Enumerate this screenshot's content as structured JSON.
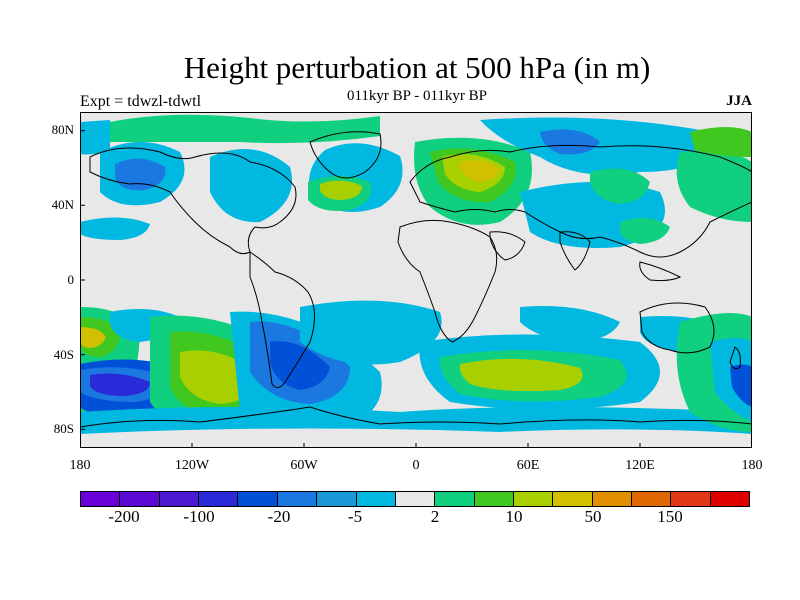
{
  "title": "Height perturbation at 500 hPa (in m)",
  "subtitle": "011kyr BP - 011kyr BP",
  "left_label": "Expt = tdwzl-tdwtl",
  "right_label": "JJA",
  "lat_labels": [
    "80N",
    "40N",
    "0",
    "40S",
    "80S"
  ],
  "lon_labels": [
    "180",
    "120W",
    "60W",
    "0",
    "60E",
    "120E",
    "180"
  ],
  "colorbar": {
    "colors": [
      "#6a00d8",
      "#5a0ad2",
      "#4a1ad0",
      "#2a2ad8",
      "#0050d8",
      "#1a78e0",
      "#1a98d8",
      "#00b8e0",
      "#e8e8e8",
      "#10d080",
      "#40c820",
      "#a8d000",
      "#d0c000",
      "#e09000",
      "#e06800",
      "#e03818",
      "#e00000"
    ],
    "labels": [
      "-200",
      "-100",
      "-20",
      "-5",
      "2",
      "10",
      "50",
      "150"
    ]
  },
  "palette": {
    "neutral": "#e8e8e8",
    "blue_light": "#00b8e0",
    "blue_mid": "#1a78e0",
    "blue_dark": "#0050d8",
    "green_light": "#10d080",
    "green": "#40c820",
    "yellow_green": "#a8d000",
    "yellow": "#d0c000"
  }
}
